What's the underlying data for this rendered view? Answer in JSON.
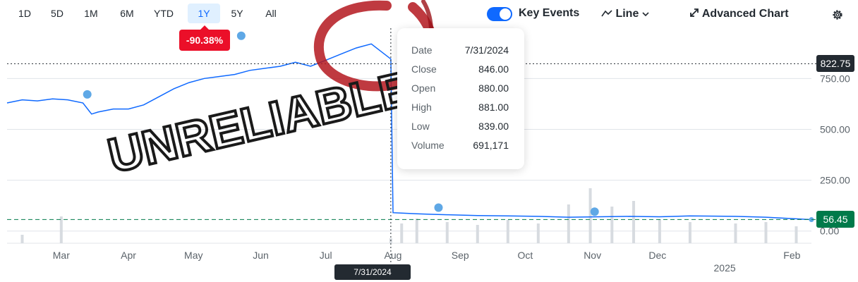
{
  "toolbar": {
    "ranges": [
      "1D",
      "5D",
      "1M",
      "6M",
      "YTD",
      "1Y",
      "5Y",
      "All"
    ],
    "active_range": "1Y",
    "performance": "-90.38%",
    "key_events_label": "Key Events",
    "key_events_on": true,
    "chart_type_label": "Line",
    "advanced_chart_label": "Advanced Chart",
    "icons": {
      "chart_type": "line-chart-icon",
      "chevron": "chevron-down-icon",
      "expand": "expand-arrows-icon",
      "settings": "gear-icon"
    }
  },
  "tooltip": {
    "rows": [
      {
        "label": "Date",
        "value": "7/31/2024"
      },
      {
        "label": "Close",
        "value": "846.00"
      },
      {
        "label": "Open",
        "value": "880.00"
      },
      {
        "label": "High",
        "value": "881.00"
      },
      {
        "label": "Low",
        "value": "839.00"
      },
      {
        "label": "Volume",
        "value": "691,171"
      }
    ]
  },
  "price_tags": {
    "hover": "822.75",
    "current": "56.45",
    "hover_color": "#232a31",
    "current_color": "#007a4a"
  },
  "date_tag": "7/31/2024",
  "annotation": {
    "text": "UNRELIABLE",
    "color": "#b4181e"
  },
  "chart_data": {
    "type": "line",
    "y_ticks": [
      0,
      250,
      500,
      750
    ],
    "y_tick_labels": [
      "0.00",
      "250.00",
      "500.00",
      "750.00"
    ],
    "ylim": [
      -60,
      980
    ],
    "x_tick_labels": [
      "Mar",
      "Apr",
      "May",
      "Jun",
      "Jul",
      "Aug",
      "Sep",
      "Oct",
      "Nov",
      "Dec",
      "Feb"
    ],
    "x_tick_dates": [
      "2024-03-01",
      "2024-04-01",
      "2024-05-01",
      "2024-06-01",
      "2024-07-01",
      "2024-08-01",
      "2024-09-01",
      "2024-10-01",
      "2024-11-01",
      "2024-12-01",
      "2025-02-01"
    ],
    "year_label": "2025",
    "year_label_date": "2025-01-01",
    "xlim": [
      "2024-02-05",
      "2025-02-10"
    ],
    "grid": true,
    "line_color": "#0f69ff",
    "series": [
      {
        "x": [
          "2024-02-05",
          "2024-02-12",
          "2024-02-19",
          "2024-02-26",
          "2024-03-04",
          "2024-03-11",
          "2024-03-15",
          "2024-03-18",
          "2024-03-25",
          "2024-04-01",
          "2024-04-08",
          "2024-04-15",
          "2024-04-22",
          "2024-04-29",
          "2024-05-06",
          "2024-05-13",
          "2024-05-20",
          "2024-05-27",
          "2024-06-03",
          "2024-06-10",
          "2024-06-17",
          "2024-06-24",
          "2024-07-01",
          "2024-07-08",
          "2024-07-15",
          "2024-07-22",
          "2024-07-31",
          "2024-08-01",
          "2024-08-05",
          "2024-08-12",
          "2024-08-19",
          "2024-08-26",
          "2024-09-09",
          "2024-09-23",
          "2024-10-07",
          "2024-10-21",
          "2024-11-04",
          "2024-11-18",
          "2024-12-02",
          "2024-12-16",
          "2025-01-06",
          "2025-01-20",
          "2025-02-03",
          "2025-02-10"
        ],
        "y": [
          630,
          645,
          640,
          650,
          645,
          630,
          575,
          585,
          600,
          600,
          620,
          660,
          700,
          730,
          750,
          760,
          770,
          790,
          800,
          810,
          830,
          810,
          840,
          870,
          900,
          920,
          846,
          90,
          88,
          85,
          82,
          80,
          76,
          74,
          72,
          68,
          70,
          72,
          70,
          74,
          72,
          68,
          60,
          56
        ]
      }
    ],
    "volume_bars": [
      {
        "x": "2024-02-12",
        "y": 12
      },
      {
        "x": "2024-03-01",
        "y": 38
      },
      {
        "x": "2024-07-31",
        "y": 7
      },
      {
        "x": "2024-08-05",
        "y": 28
      },
      {
        "x": "2024-08-12",
        "y": 35
      },
      {
        "x": "2024-08-26",
        "y": 30
      },
      {
        "x": "2024-09-09",
        "y": 26
      },
      {
        "x": "2024-09-23",
        "y": 33
      },
      {
        "x": "2024-10-07",
        "y": 28
      },
      {
        "x": "2024-10-21",
        "y": 55
      },
      {
        "x": "2024-10-31",
        "y": 78
      },
      {
        "x": "2024-11-10",
        "y": 52
      },
      {
        "x": "2024-11-20",
        "y": 60
      },
      {
        "x": "2024-12-02",
        "y": 34
      },
      {
        "x": "2024-12-16",
        "y": 30
      },
      {
        "x": "2025-01-06",
        "y": 28
      },
      {
        "x": "2025-01-20",
        "y": 30
      },
      {
        "x": "2025-02-03",
        "y": 24
      }
    ],
    "key_events": [
      {
        "x": "2024-03-13",
        "y": 672
      },
      {
        "x": "2024-05-23",
        "y": 960
      },
      {
        "x": "2024-08-22",
        "y": 115
      },
      {
        "x": "2024-11-02",
        "y": 95
      }
    ],
    "hover_date": "2024-07-31",
    "hover_price": 822.75,
    "current_price": 56.45
  }
}
